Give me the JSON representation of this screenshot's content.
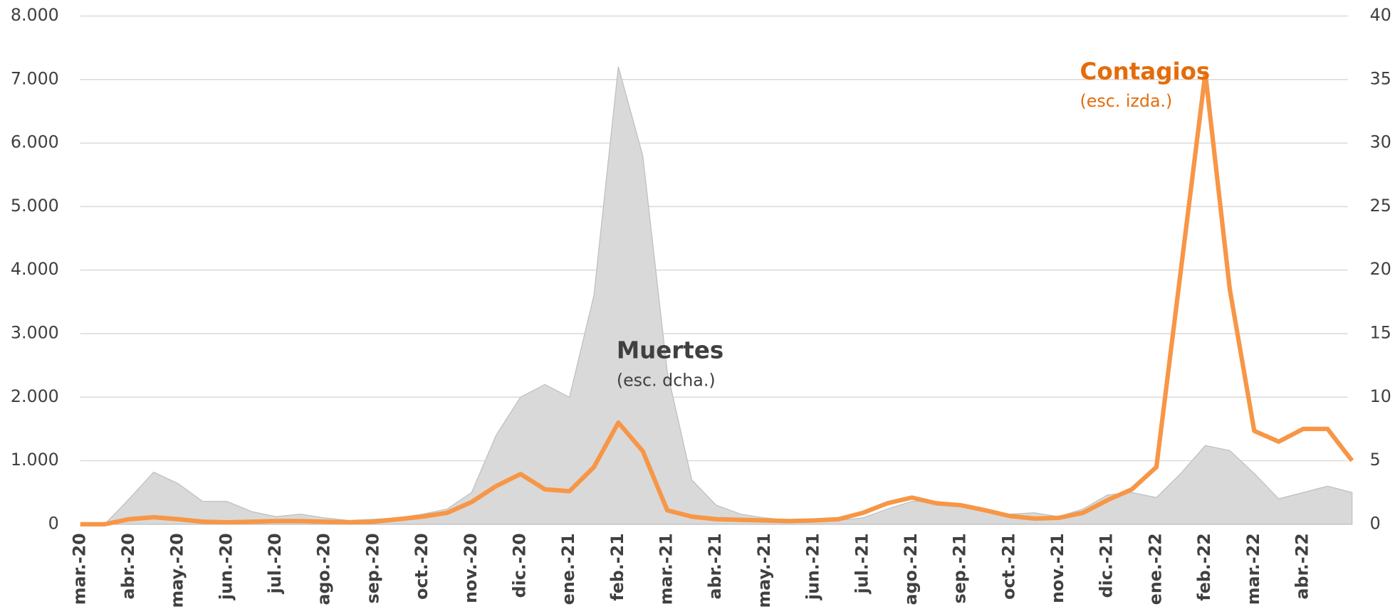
{
  "chart_data": {
    "type": "line",
    "categories": [
      "mar.-20",
      null,
      "abr.-20",
      null,
      "may.-20",
      null,
      "jun.-20",
      null,
      "jul.-20",
      null,
      "ago.-20",
      null,
      "sep.-20",
      null,
      "oct.-20",
      null,
      "nov.-20",
      null,
      "dic.-20",
      null,
      "ene.-21",
      null,
      "feb.-21",
      null,
      "mar.-21",
      null,
      "abr.-21",
      null,
      "may.-21",
      null,
      "jun.-21",
      null,
      "jul.-21",
      null,
      "ago.-21",
      null,
      "sep.-21",
      null,
      "oct.-21",
      null,
      "nov.-21",
      null,
      "dic.-21",
      null,
      "ene.-22",
      null,
      "feb.-22",
      null,
      "mar.-22",
      null,
      "abr.-22",
      null,
      null
    ],
    "series": [
      {
        "name": "Muertes",
        "type": "area",
        "axis": "y2",
        "color": "#d9d9d9",
        "values": [
          0,
          0,
          2,
          4.1,
          3.2,
          1.8,
          1.8,
          1.0,
          0.6,
          0.8,
          0.5,
          0.3,
          0.4,
          0.5,
          0.8,
          1.2,
          2.5,
          7,
          10,
          11,
          10,
          18,
          36,
          29,
          12,
          3.5,
          1.5,
          0.8,
          0.5,
          0.3,
          0.3,
          0.3,
          0.5,
          1.2,
          1.8,
          1.8,
          1.5,
          1,
          0.8,
          0.9,
          0.6,
          1.2,
          2.3,
          2.5,
          2.1,
          4,
          6.2,
          5.8,
          4,
          2,
          2.5,
          3,
          2.5
        ]
      },
      {
        "name": "Contagios",
        "type": "line",
        "axis": "y",
        "color": "#f79646",
        "values": [
          0,
          0,
          80,
          110,
          80,
          40,
          30,
          40,
          50,
          50,
          40,
          30,
          40,
          80,
          120,
          180,
          350,
          600,
          790,
          550,
          520,
          900,
          1600,
          1150,
          220,
          120,
          80,
          70,
          60,
          50,
          60,
          80,
          180,
          330,
          420,
          330,
          300,
          220,
          130,
          90,
          100,
          180,
          380,
          550,
          900,
          4000,
          7100,
          3700,
          1470,
          1300,
          1500,
          1500,
          1000
        ]
      }
    ],
    "annotations": [
      {
        "text": "(esc. izda.)"
      },
      {
        "text": "(esc. dcha.)"
      }
    ],
    "ylim": [
      0,
      8000
    ],
    "yticks": [
      0,
      {
        "value": 1000,
        "label": "1.000"
      },
      {
        "value": 2000,
        "label": "2.000"
      },
      {
        "value": 3000,
        "label": "3.000"
      },
      {
        "value": 4000,
        "label": "4.000"
      },
      {
        "value": 5000,
        "label": "5.000"
      },
      {
        "value": 6000,
        "label": "6.000"
      },
      {
        "value": 7000,
        "label": "7.000"
      },
      {
        "value": 8000,
        "label": "8.000"
      }
    ],
    "y2lim": [
      0,
      40
    ],
    "y2ticks": [
      0,
      5,
      10,
      15,
      20,
      25,
      30,
      35,
      40
    ],
    "grid": true
  }
}
